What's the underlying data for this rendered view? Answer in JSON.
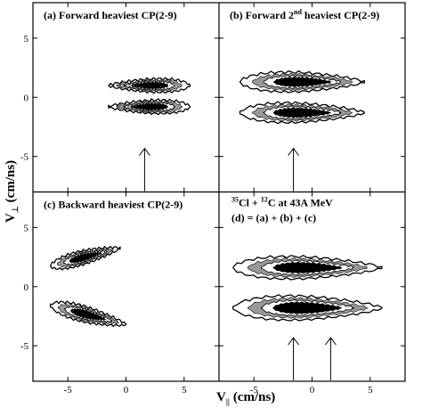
{
  "chart_data": {
    "type": "contour",
    "xlabel": "V",
    "xlabel_sub": "||",
    "xlabel_unit": "(cm/ns)",
    "ylabel": "V",
    "ylabel_sub": "⊥",
    "ylabel_unit": "(cm/ns)",
    "xlim": [
      -8,
      8
    ],
    "ylim": [
      -8,
      8
    ],
    "x_ticks": [
      -5,
      0,
      5
    ],
    "y_ticks": [
      5,
      0,
      -5
    ],
    "panels": [
      {
        "id": "a",
        "label_pre": "(a) Forward heaviest CP(2-9)",
        "label_sup": "",
        "label_post": "",
        "note_lines": [],
        "arrows_x": [
          1.6
        ],
        "lobes": [
          {
            "x1": -1.5,
            "x2": 5.5,
            "yc": 1.0,
            "h": 1.5,
            "dir": 1
          },
          {
            "x1": -1.5,
            "x2": 5.5,
            "yc": -0.8,
            "h": 1.5,
            "dir": 1
          }
        ]
      },
      {
        "id": "b",
        "label_pre": "(b) Forward 2",
        "label_sup": "nd",
        "label_post": " heaviest CP(2-9)",
        "note_lines": [],
        "arrows_x": [
          -1.6
        ],
        "lobes": [
          {
            "x1": -6.2,
            "x2": 4.5,
            "yc": 1.3,
            "h": 2.2,
            "dir": -1
          },
          {
            "x1": -6.2,
            "x2": 4.5,
            "yc": -1.3,
            "h": 2.2,
            "dir": -1
          }
        ]
      },
      {
        "id": "c",
        "label_pre": "(c) Backward heaviest CP(2-9)",
        "label_sup": "",
        "label_post": "",
        "note_lines": [],
        "arrows_x": [],
        "lobes": [
          {
            "x1": -6.5,
            "x2": -0.5,
            "yc": 2.5,
            "h": 1.6,
            "dir": -1,
            "tilt": 1.5
          },
          {
            "x1": -6.5,
            "x2": 0.0,
            "yc": -2.4,
            "h": 1.8,
            "dir": -1,
            "tilt": -1.6
          }
        ]
      },
      {
        "id": "d",
        "label_pre": "",
        "label_sup": "",
        "label_post": "",
        "note_lines": [
          {
            "sup": "35",
            "text": "Cl + ",
            "sup2": "12",
            "text2": "C at 43A MeV"
          },
          {
            "sup": "",
            "text": "(d) = (a) + (b) + (c)",
            "sup2": "",
            "text2": ""
          }
        ],
        "arrows_x": [
          -1.6,
          1.6
        ],
        "lobes": [
          {
            "x1": -6.8,
            "x2": 6.0,
            "yc": 1.6,
            "h": 2.5,
            "dir": -1
          },
          {
            "x1": -6.8,
            "x2": 6.0,
            "yc": -1.8,
            "h": 2.7,
            "dir": -1
          }
        ]
      }
    ]
  }
}
